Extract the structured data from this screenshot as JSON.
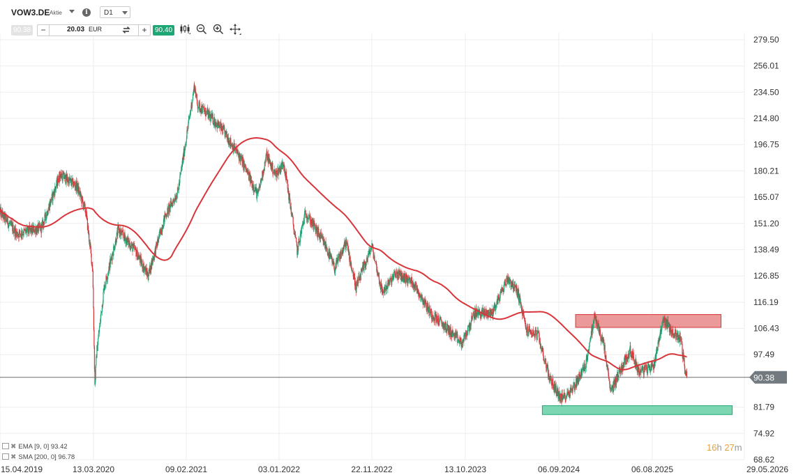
{
  "header": {
    "symbol": "VOW3.DE",
    "asset_type": "Aktie",
    "timeframe": "D1",
    "sell_price": "90.38",
    "buy_price": "90.40",
    "quantity": "20.03",
    "currency": "EUR",
    "minus_label": "−",
    "plus_label": "+",
    "swap_icon": "swap-icon",
    "info_label": "i"
  },
  "indicators": [
    {
      "label": "EMA [9, 0] 93.42"
    },
    {
      "label": "SMA [200, 0] 96.78"
    }
  ],
  "countdown": {
    "hours": "16",
    "h_unit": "h",
    "minutes": "27",
    "m_unit": "m"
  },
  "colors": {
    "up": "#1ea674",
    "down": "#d8353b",
    "sma": "#d8353b",
    "resistance_zone": "#e98e8e",
    "support_zone": "#6fd1aa",
    "price_tag": "#727a80",
    "grid": "#eeeeee"
  },
  "chart_data": {
    "type": "candlestick",
    "title": "",
    "xlabel": "",
    "ylabel": "",
    "y_scale": "log",
    "ylim": [
      68.62,
      300.0
    ],
    "y_ticks": [
      "279.50",
      "256.01",
      "234.50",
      "214.80",
      "196.75",
      "180.21",
      "165.07",
      "151.20",
      "138.49",
      "126.85",
      "116.19",
      "106.43",
      "97.49",
      "81.79",
      "74.92",
      "68.62"
    ],
    "x_ticks": [
      "15.04.2019",
      "13.03.2020",
      "09.02.2021",
      "03.01.2022",
      "22.11.2022",
      "13.10.2023",
      "06.09.2024",
      "06.08.2025",
      "29.05.2026"
    ],
    "x_range": [
      "15.04.2019",
      "29.05.2026"
    ],
    "grid": true,
    "last_price": 90.38,
    "last_price_label": "90.38",
    "close_anchors": [
      {
        "date": "2019-04-15",
        "close": 157
      },
      {
        "date": "2019-06-15",
        "close": 146
      },
      {
        "date": "2019-09-10",
        "close": 149
      },
      {
        "date": "2019-11-15",
        "close": 178
      },
      {
        "date": "2020-01-15",
        "close": 171
      },
      {
        "date": "2020-02-15",
        "close": 157
      },
      {
        "date": "2020-03-10",
        "close": 130
      },
      {
        "date": "2020-03-18",
        "close": 88
      },
      {
        "date": "2020-03-24",
        "close": 98
      },
      {
        "date": "2020-04-20",
        "close": 122
      },
      {
        "date": "2020-06-10",
        "close": 148
      },
      {
        "date": "2020-08-10",
        "close": 138
      },
      {
        "date": "2020-09-25",
        "close": 127
      },
      {
        "date": "2020-11-25",
        "close": 155
      },
      {
        "date": "2021-01-10",
        "close": 168
      },
      {
        "date": "2021-03-10",
        "close": 240
      },
      {
        "date": "2021-03-20",
        "close": 225
      },
      {
        "date": "2021-05-10",
        "close": 215
      },
      {
        "date": "2021-06-20",
        "close": 206
      },
      {
        "date": "2021-08-20",
        "close": 188
      },
      {
        "date": "2021-10-20",
        "close": 166
      },
      {
        "date": "2021-11-20",
        "close": 190
      },
      {
        "date": "2021-12-20",
        "close": 178
      },
      {
        "date": "2022-01-20",
        "close": 185
      },
      {
        "date": "2022-03-07",
        "close": 138
      },
      {
        "date": "2022-04-05",
        "close": 157
      },
      {
        "date": "2022-06-15",
        "close": 140
      },
      {
        "date": "2022-07-15",
        "close": 130
      },
      {
        "date": "2022-08-25",
        "close": 142
      },
      {
        "date": "2022-09-28",
        "close": 122
      },
      {
        "date": "2022-11-22",
        "close": 140
      },
      {
        "date": "2022-12-28",
        "close": 120
      },
      {
        "date": "2023-02-15",
        "close": 128
      },
      {
        "date": "2023-04-15",
        "close": 124
      },
      {
        "date": "2023-06-15",
        "close": 112
      },
      {
        "date": "2023-08-15",
        "close": 106
      },
      {
        "date": "2023-10-01",
        "close": 101
      },
      {
        "date": "2023-11-15",
        "close": 112
      },
      {
        "date": "2024-01-15",
        "close": 112
      },
      {
        "date": "2024-03-10",
        "close": 126
      },
      {
        "date": "2024-04-15",
        "close": 120
      },
      {
        "date": "2024-05-15",
        "close": 106
      },
      {
        "date": "2024-06-25",
        "close": 104
      },
      {
        "date": "2024-08-05",
        "close": 90
      },
      {
        "date": "2024-09-15",
        "close": 84
      },
      {
        "date": "2024-10-25",
        "close": 87
      },
      {
        "date": "2024-12-10",
        "close": 94
      },
      {
        "date": "2025-01-12",
        "close": 111
      },
      {
        "date": "2025-02-15",
        "close": 100
      },
      {
        "date": "2025-03-10",
        "close": 86
      },
      {
        "date": "2025-04-10",
        "close": 92
      },
      {
        "date": "2025-05-20",
        "close": 99
      },
      {
        "date": "2025-06-20",
        "close": 92
      },
      {
        "date": "2025-08-10",
        "close": 94
      },
      {
        "date": "2025-09-10",
        "close": 110
      },
      {
        "date": "2025-10-10",
        "close": 105
      },
      {
        "date": "2025-11-05",
        "close": 103
      },
      {
        "date": "2025-11-20",
        "close": 92
      },
      {
        "date": "2025-11-25",
        "close": 90.38
      }
    ],
    "series": [
      {
        "name": "SMA [200, 0]",
        "type": "line",
        "last": 96.78
      }
    ],
    "zones": [
      {
        "type": "resistance",
        "x": [
          "2024-11-05",
          "2026-03-15"
        ],
        "y": [
          106.8,
          111.5
        ]
      },
      {
        "type": "support",
        "x": [
          "2024-07-10",
          "2026-04-20"
        ],
        "y": [
          79.8,
          82.2
        ]
      }
    ]
  }
}
